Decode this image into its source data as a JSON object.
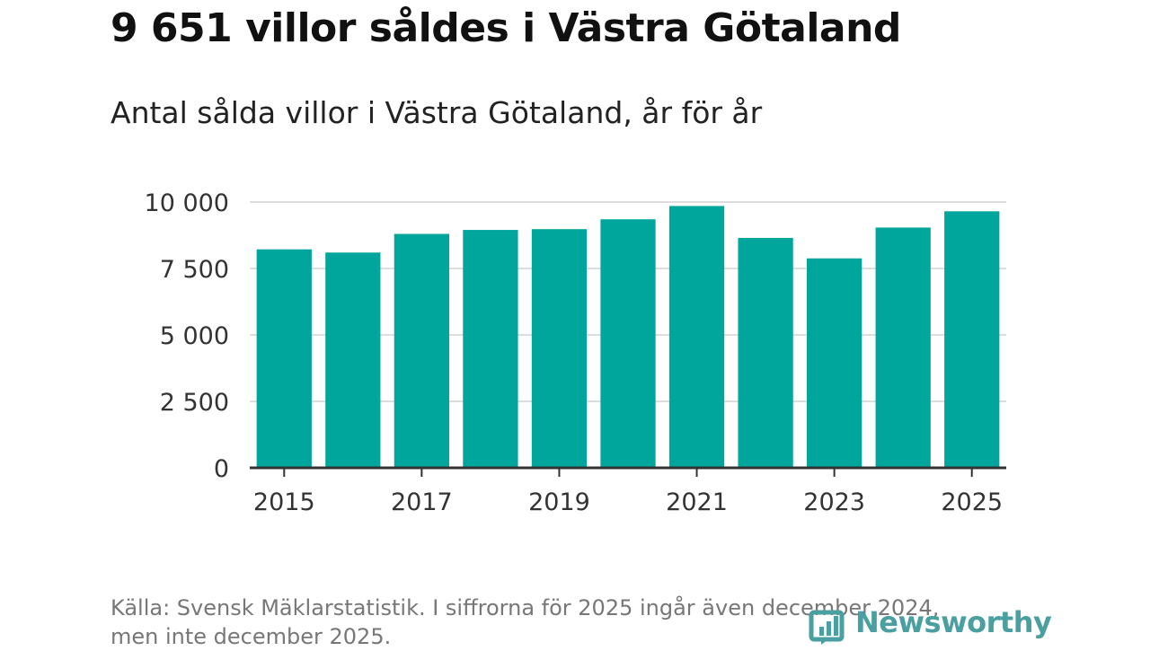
{
  "header": {
    "title": "9 651 villor såldes i Västra Götaland",
    "subtitle": "Antal sålda villor i Västra Götaland, år för år"
  },
  "footer": {
    "source_line1": "Källa: Svensk Mäklarstatistik. I siffrorna för 2025 ingår även december 2024,",
    "source_line2": "men inte december 2025.",
    "logo_text": "Newsworthy"
  },
  "colors": {
    "bar": "#00a59b",
    "grid": "#dddddd",
    "axis": "#333333",
    "logo": "#4a9fa0"
  },
  "chart_data": {
    "type": "bar",
    "title": "Antal sålda villor i Västra Götaland, år för år",
    "xlabel": "",
    "ylabel": "",
    "categories": [
      "2015",
      "2016",
      "2017",
      "2018",
      "2019",
      "2020",
      "2021",
      "2022",
      "2023",
      "2024",
      "2025"
    ],
    "values": [
      8220,
      8100,
      8800,
      8950,
      8980,
      9350,
      9850,
      8650,
      7880,
      9040,
      9651
    ],
    "ylim": [
      0,
      10000
    ],
    "y_ticks": [
      0,
      2500,
      5000,
      7500,
      10000
    ],
    "y_tick_labels": [
      "0",
      "2 500",
      "5 000",
      "7 500",
      "10 000"
    ],
    "x_tick_labels": [
      "2015",
      "2017",
      "2019",
      "2021",
      "2023",
      "2025"
    ],
    "grid": true
  }
}
